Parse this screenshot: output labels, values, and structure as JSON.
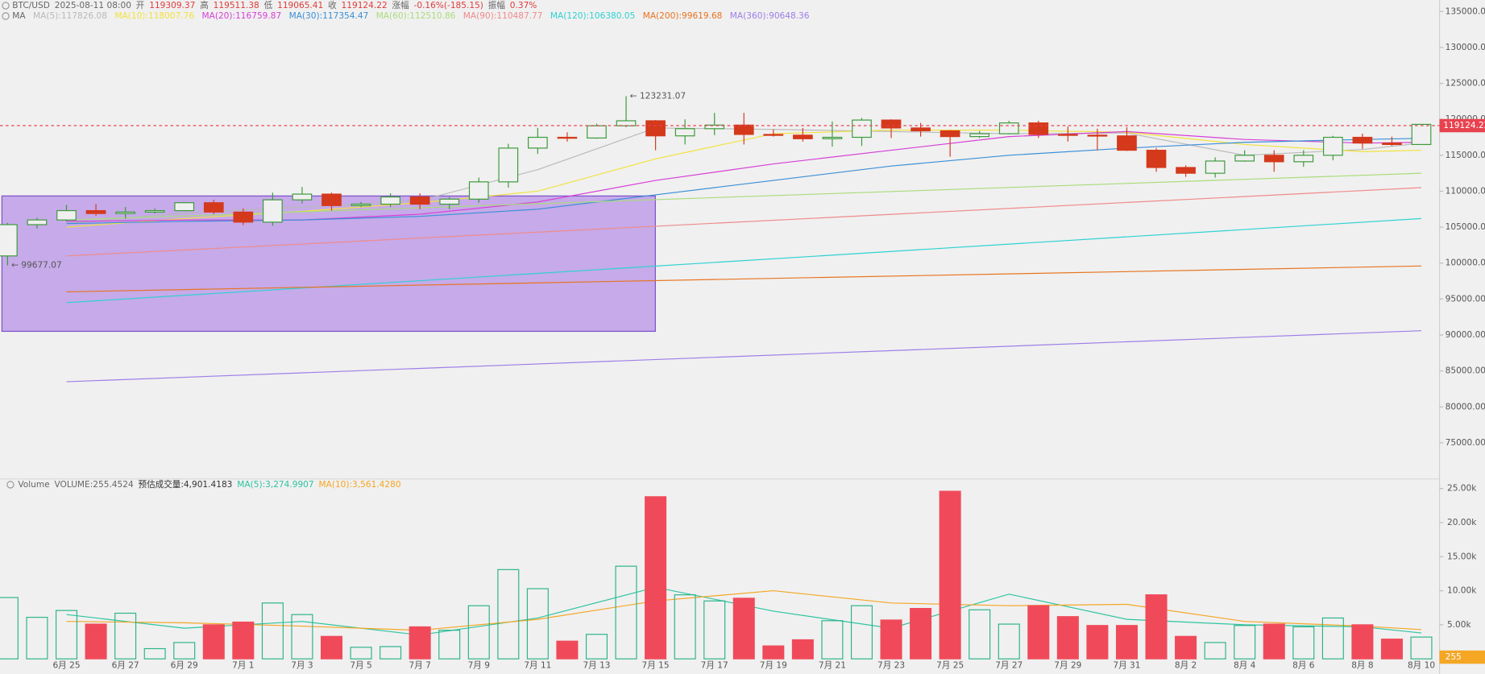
{
  "chart_data": [
    {
      "type": "candlestick",
      "header": [
        {
          "text": "BTC/USD",
          "color": "#666"
        },
        {
          "text": "2025-08-11 08:00",
          "color": "#666"
        },
        {
          "text": "开",
          "color": "#666"
        },
        {
          "text": "119309.37",
          "color": "#e03b3b"
        },
        {
          "text": "高",
          "color": "#666"
        },
        {
          "text": "119511.38",
          "color": "#e03b3b"
        },
        {
          "text": "低",
          "color": "#666"
        },
        {
          "text": "119065.41",
          "color": "#e03b3b"
        },
        {
          "text": "收",
          "color": "#666"
        },
        {
          "text": "119124.22",
          "color": "#e03b3b"
        },
        {
          "text": "涨幅",
          "color": "#666"
        },
        {
          "text": "-0.16%(-185.15)",
          "color": "#e03b3b"
        },
        {
          "text": "振幅",
          "color": "#666"
        },
        {
          "text": "0.37%",
          "color": "#e03b3b"
        }
      ],
      "ma_title": "MA",
      "categories": [
        null,
        null,
        "6月 25",
        null,
        "6月 27",
        null,
        "6月 29",
        null,
        "7月 1",
        null,
        "7月 3",
        null,
        "7月 5",
        null,
        "7月 7",
        null,
        "7月 9",
        null,
        "7月 11",
        null,
        "7月 13",
        null,
        "7月 15",
        null,
        "7月 17",
        null,
        "7月 19",
        null,
        "7月 21",
        null,
        "7月 23",
        null,
        "7月 25",
        null,
        "7月 27",
        null,
        "7月 29",
        null,
        "7月 31",
        null,
        "8月 2",
        null,
        "8月 4",
        null,
        "8月 6",
        null,
        "8月 8",
        null,
        "8月 10"
      ],
      "open": [
        101000,
        105350,
        106000,
        107300,
        106900,
        107100,
        107300,
        108400,
        107100,
        105700,
        108800,
        109600,
        108000,
        108200,
        109200,
        108200,
        108900,
        111300,
        116000,
        117500,
        117400,
        119100,
        119800,
        117700,
        118700,
        119200,
        117900,
        117800,
        117300,
        117500,
        119900,
        118800,
        118400,
        117600,
        118000,
        119500,
        117900,
        117800,
        117700,
        115700,
        113300,
        112500,
        114200,
        115000,
        114100,
        115000,
        117500,
        116700,
        116500
      ],
      "high": [
        105600,
        106300,
        108100,
        108200,
        107800,
        107600,
        108500,
        108800,
        107600,
        109800,
        110600,
        109800,
        108500,
        109700,
        109700,
        109200,
        111900,
        116600,
        118800,
        118200,
        119400,
        123231.07,
        119900,
        120000,
        120900,
        120900,
        118600,
        118800,
        119700,
        120200,
        120000,
        119500,
        118500,
        118400,
        119800,
        119800,
        119000,
        118700,
        118900,
        116000,
        113600,
        114700,
        115700,
        115700,
        115700,
        117700,
        118000,
        117600,
        119300
      ],
      "low": [
        99677.07,
        104800,
        105800,
        106600,
        106200,
        106900,
        107200,
        106800,
        105300,
        105200,
        108300,
        107300,
        107800,
        107800,
        107500,
        107500,
        108400,
        110500,
        115200,
        116900,
        117300,
        118900,
        115700,
        116500,
        117800,
        116500,
        117600,
        116900,
        116200,
        116300,
        117400,
        117600,
        114800,
        117400,
        117900,
        117400,
        116900,
        115700,
        115600,
        112700,
        112000,
        111900,
        114100,
        112700,
        113400,
        114300,
        115900,
        116300,
        116500
      ],
      "close": [
        105350,
        106000,
        107300,
        106900,
        107100,
        107300,
        108400,
        107100,
        105700,
        108800,
        109600,
        108000,
        108200,
        109200,
        108200,
        108900,
        111300,
        116000,
        117500,
        117400,
        119100,
        119800,
        117700,
        118700,
        119200,
        117900,
        117800,
        117300,
        117500,
        119900,
        118800,
        118400,
        117600,
        118000,
        119500,
        117900,
        117800,
        117700,
        115700,
        113300,
        112500,
        114200,
        115000,
        114100,
        115000,
        117500,
        116700,
        116500,
        119300
      ],
      "up_color": "#3a9a3a",
      "down_color": "#d4391c",
      "ylim": [
        70100,
        136600
      ],
      "yticks": [
        {
          "value": 75000,
          "label": "75000.00"
        },
        {
          "value": 80000,
          "label": "80000.00"
        },
        {
          "value": 85000,
          "label": "85000.00"
        },
        {
          "value": 90000,
          "label": "90000.00"
        },
        {
          "value": 95000,
          "label": "95000.00"
        },
        {
          "value": 100000,
          "label": "100000.00"
        },
        {
          "value": 105000,
          "label": "105000.00"
        },
        {
          "value": 110000,
          "label": "110000.00"
        },
        {
          "value": 115000,
          "label": "115000.00"
        },
        {
          "value": 120000,
          "label": "120000.00"
        },
        {
          "value": 125000,
          "label": "125000.00"
        },
        {
          "value": 130000,
          "label": "130000.00"
        },
        {
          "value": 135000,
          "label": "135000.00"
        }
      ],
      "last_price": {
        "value": 119124.22,
        "label": "119124.22",
        "color": "#e8424f"
      },
      "annotations": [
        {
          "value": 123231.07,
          "label": "← 123231.07"
        },
        {
          "value": 99677.07,
          "label": "← 99677.07"
        }
      ],
      "lines": [
        {
          "label": "MA(5):117826.08",
          "color": "#b9b9b9",
          "x": [
            "6月 25",
            "6月 29",
            "7月 3",
            "7月 7",
            "7月 11",
            "7月 15",
            "7月 19",
            "7月 23",
            "7月 27",
            "7月 31",
            "8月 4",
            "8月 8",
            "8月 10"
          ],
          "values": [
            105500,
            107000,
            107800,
            108700,
            113000,
            118800,
            118600,
            118300,
            118000,
            118100,
            115000,
            115800,
            116700
          ]
        },
        {
          "label": "MA(10):118007.76",
          "color": "#f2e23c",
          "x": [
            "6月 25",
            "6月 29",
            "7月 3",
            "7月 7",
            "7月 11",
            "7月 15",
            "7月 19",
            "7月 23",
            "7月 27",
            "7月 31",
            "8月 4",
            "8月 8",
            "8月 10"
          ],
          "values": [
            105000,
            106200,
            107200,
            108400,
            110000,
            114500,
            118000,
            118500,
            118500,
            118200,
            116500,
            115500,
            115700
          ]
        },
        {
          "label": "MA(20):116759.87",
          "color": "#d63fd6",
          "x": [
            "6月 25",
            "6月 29",
            "7月 3",
            "7月 7",
            "7月 11",
            "7月 15",
            "7月 19",
            "7月 23",
            "7月 27",
            "7月 31",
            "8月 4",
            "8月 8",
            "8月 10"
          ],
          "values": [
            105800,
            106000,
            106000,
            106800,
            108500,
            111500,
            113800,
            115700,
            117600,
            118300,
            117200,
            116700,
            116800
          ]
        },
        {
          "label": "MA(30):117354.47",
          "color": "#3a8fd6",
          "x": [
            "6月 25",
            "6月 29",
            "7月 3",
            "7月 7",
            "7月 11",
            "7月 15",
            "7月 19",
            "7月 23",
            "7月 27",
            "7月 31",
            "8月 4",
            "8月 8",
            "8月 10"
          ],
          "values": [
            105500,
            105800,
            106000,
            106500,
            107500,
            109500,
            111500,
            113500,
            115000,
            116000,
            116800,
            117200,
            117350
          ]
        },
        {
          "label": "MA(60):112510.86",
          "color": "#a9dc7a",
          "x": [
            "6月 25",
            "8月 10"
          ],
          "values": [
            106000,
            112500
          ]
        },
        {
          "label": "MA(90):110487.77",
          "color": "#f08a8a",
          "x": [
            "6月 25",
            "8月 10"
          ],
          "values": [
            101000,
            110500
          ]
        },
        {
          "label": "MA(120):106380.05",
          "color": "#2ed1d1",
          "x": [
            "6月 25",
            "8月 10"
          ],
          "values": [
            94500,
            106200
          ]
        },
        {
          "label": "MA(200):99619.68",
          "color": "#e8731f",
          "x": [
            "6月 25",
            "8月 10"
          ],
          "values": [
            96000,
            99600
          ]
        },
        {
          "label": "MA(360):90648.36",
          "color": "#9b7ee8",
          "x": [
            "6月 25",
            "8月 10"
          ],
          "values": [
            83500,
            90600
          ]
        }
      ]
    },
    {
      "type": "bar",
      "header": [
        {
          "text": "Volume",
          "color": "#666"
        },
        {
          "text": "VOLUME:255.4524",
          "color": "#666"
        },
        {
          "text": "预估成交量:4,901.4183",
          "color": "#333"
        }
      ],
      "values": [
        9000,
        6100,
        7100,
        5100,
        6700,
        1500,
        2400,
        5000,
        5400,
        8200,
        6500,
        3300,
        1700,
        1800,
        4700,
        4200,
        7800,
        13100,
        10300,
        2600,
        3600,
        13600,
        23800,
        9400,
        8500,
        8900,
        1900,
        2800,
        5600,
        7800,
        5700,
        7400,
        24600,
        7200,
        5100,
        7800,
        6200,
        4900,
        4900,
        9400,
        3300,
        2400,
        4900,
        5100,
        4700,
        6000,
        5000,
        2900,
        3200
      ],
      "up_color": "#2bb38a",
      "down_color": "#f04a5a",
      "ylim": [
        0,
        26400
      ],
      "yticks": [
        {
          "value": 5000,
          "label": "5.00k"
        },
        {
          "value": 10000,
          "label": "10.00k"
        },
        {
          "value": 15000,
          "label": "15.00k"
        },
        {
          "value": 20000,
          "label": "20.00k"
        },
        {
          "value": 25000,
          "label": "25.00k"
        }
      ],
      "last_value": {
        "value": 255,
        "label": "255",
        "color": "#f5a623"
      },
      "lines": [
        {
          "label": "MA(5):3,274.9907",
          "color": "#2ec4a0",
          "x": [
            "6月 25",
            "6月 29",
            "7月 3",
            "7月 7",
            "7月 11",
            "7月 15",
            "7月 19",
            "7月 23",
            "7月 27",
            "7月 31",
            "8月 4",
            "8月 8",
            "8月 10"
          ],
          "values": [
            6500,
            4500,
            5500,
            3500,
            6000,
            10500,
            7000,
            4500,
            9500,
            5800,
            5000,
            4700,
            3800
          ]
        },
        {
          "label": "MA(10):3,561.4280",
          "color": "#f5a623",
          "x": [
            "6月 25",
            "6月 29",
            "7月 3",
            "7月 7",
            "7月 11",
            "7月 15",
            "7月 19",
            "7月 23",
            "7月 27",
            "7月 31",
            "8月 4",
            "8月 8",
            "8月 10"
          ],
          "values": [
            5500,
            5300,
            4800,
            4200,
            5800,
            8500,
            10000,
            8200,
            7800,
            8000,
            5500,
            4800,
            4300
          ]
        }
      ]
    }
  ]
}
